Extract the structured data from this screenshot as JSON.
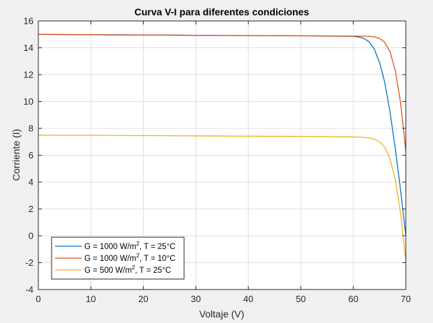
{
  "chart_data": {
    "type": "line",
    "title": "Curva V-I para diferentes condiciones",
    "xlabel": "Voltaje (V)",
    "ylabel": "Corriente (I)",
    "xlim": [
      0,
      70
    ],
    "ylim": [
      -4,
      16
    ],
    "xticks": [
      0,
      10,
      20,
      30,
      40,
      50,
      60,
      70
    ],
    "yticks": [
      -4,
      -2,
      0,
      2,
      4,
      6,
      8,
      10,
      12,
      14,
      16
    ],
    "grid": true,
    "legend_position": "bottom-left",
    "series": [
      {
        "name": "G = 1000 W/m2, T = 25°C",
        "legend_parts": [
          "G = 1000 W/m",
          "2",
          ", T = 25°C"
        ],
        "color": "#0072BD",
        "x": [
          0,
          10,
          20,
          30,
          40,
          50,
          58,
          60,
          61,
          62,
          63,
          64,
          65,
          66,
          67,
          68,
          69,
          70
        ],
        "y": [
          15.0,
          14.97,
          14.95,
          14.93,
          14.91,
          14.89,
          14.87,
          14.85,
          14.8,
          14.7,
          14.45,
          13.9,
          12.9,
          11.4,
          9.2,
          6.5,
          3.4,
          0.0
        ]
      },
      {
        "name": "G = 1000 W/m2, T = 10°C",
        "legend_parts": [
          "G = 1000 W/m",
          "2",
          ", T = 10°C"
        ],
        "color": "#D95319",
        "x": [
          0,
          10,
          20,
          30,
          40,
          50,
          60,
          62,
          63,
          64,
          65,
          66,
          67,
          68,
          69,
          70
        ],
        "y": [
          15.0,
          14.97,
          14.95,
          14.93,
          14.91,
          14.89,
          14.87,
          14.86,
          14.85,
          14.82,
          14.7,
          14.4,
          13.7,
          12.3,
          9.9,
          6.3
        ]
      },
      {
        "name": "G = 500 W/m2, T = 25°C",
        "legend_parts": [
          "G = 500 W/m",
          "2",
          ", T = 25°C"
        ],
        "color": "#EDB120",
        "x": [
          0,
          10,
          20,
          30,
          40,
          50,
          60,
          62,
          63,
          64,
          65,
          66,
          67,
          68,
          69,
          70
        ],
        "y": [
          7.5,
          7.48,
          7.46,
          7.44,
          7.42,
          7.4,
          7.36,
          7.33,
          7.29,
          7.2,
          7.0,
          6.6,
          5.7,
          4.2,
          1.7,
          -1.9
        ]
      }
    ]
  }
}
